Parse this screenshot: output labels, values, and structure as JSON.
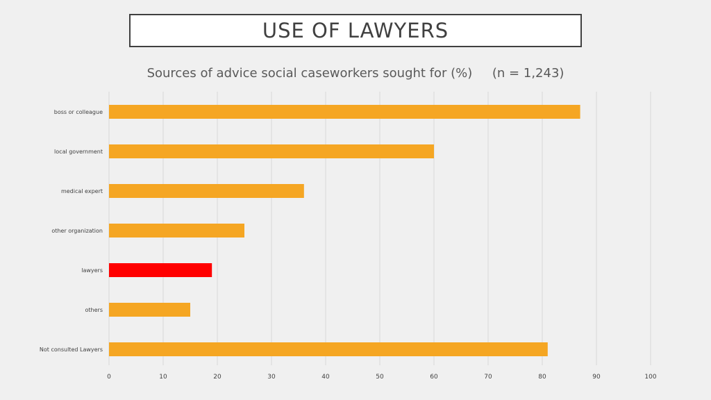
{
  "title": "USE OF LAWYERS",
  "subtitle": "Sources of advice social caseworkers sought for (%)     (n = 1,243)",
  "colors": {
    "bar": "#f5a623",
    "highlight": "#ff0000",
    "grid": "#d9d9d9",
    "tick_text": "#404040"
  },
  "chart_data": {
    "type": "bar",
    "orientation": "horizontal",
    "categories": [
      "boss or colleague",
      "local government",
      "medical expert",
      "other organization",
      "lawyers",
      "others",
      "Not consulted Lawyers"
    ],
    "values": [
      87,
      60,
      36,
      25,
      19,
      15,
      81
    ],
    "highlight_category": "lawyers",
    "xlim": [
      0,
      100
    ],
    "xticks": [
      0,
      10,
      20,
      30,
      40,
      50,
      60,
      70,
      80,
      90,
      100
    ],
    "grid": true,
    "legend": "none"
  }
}
